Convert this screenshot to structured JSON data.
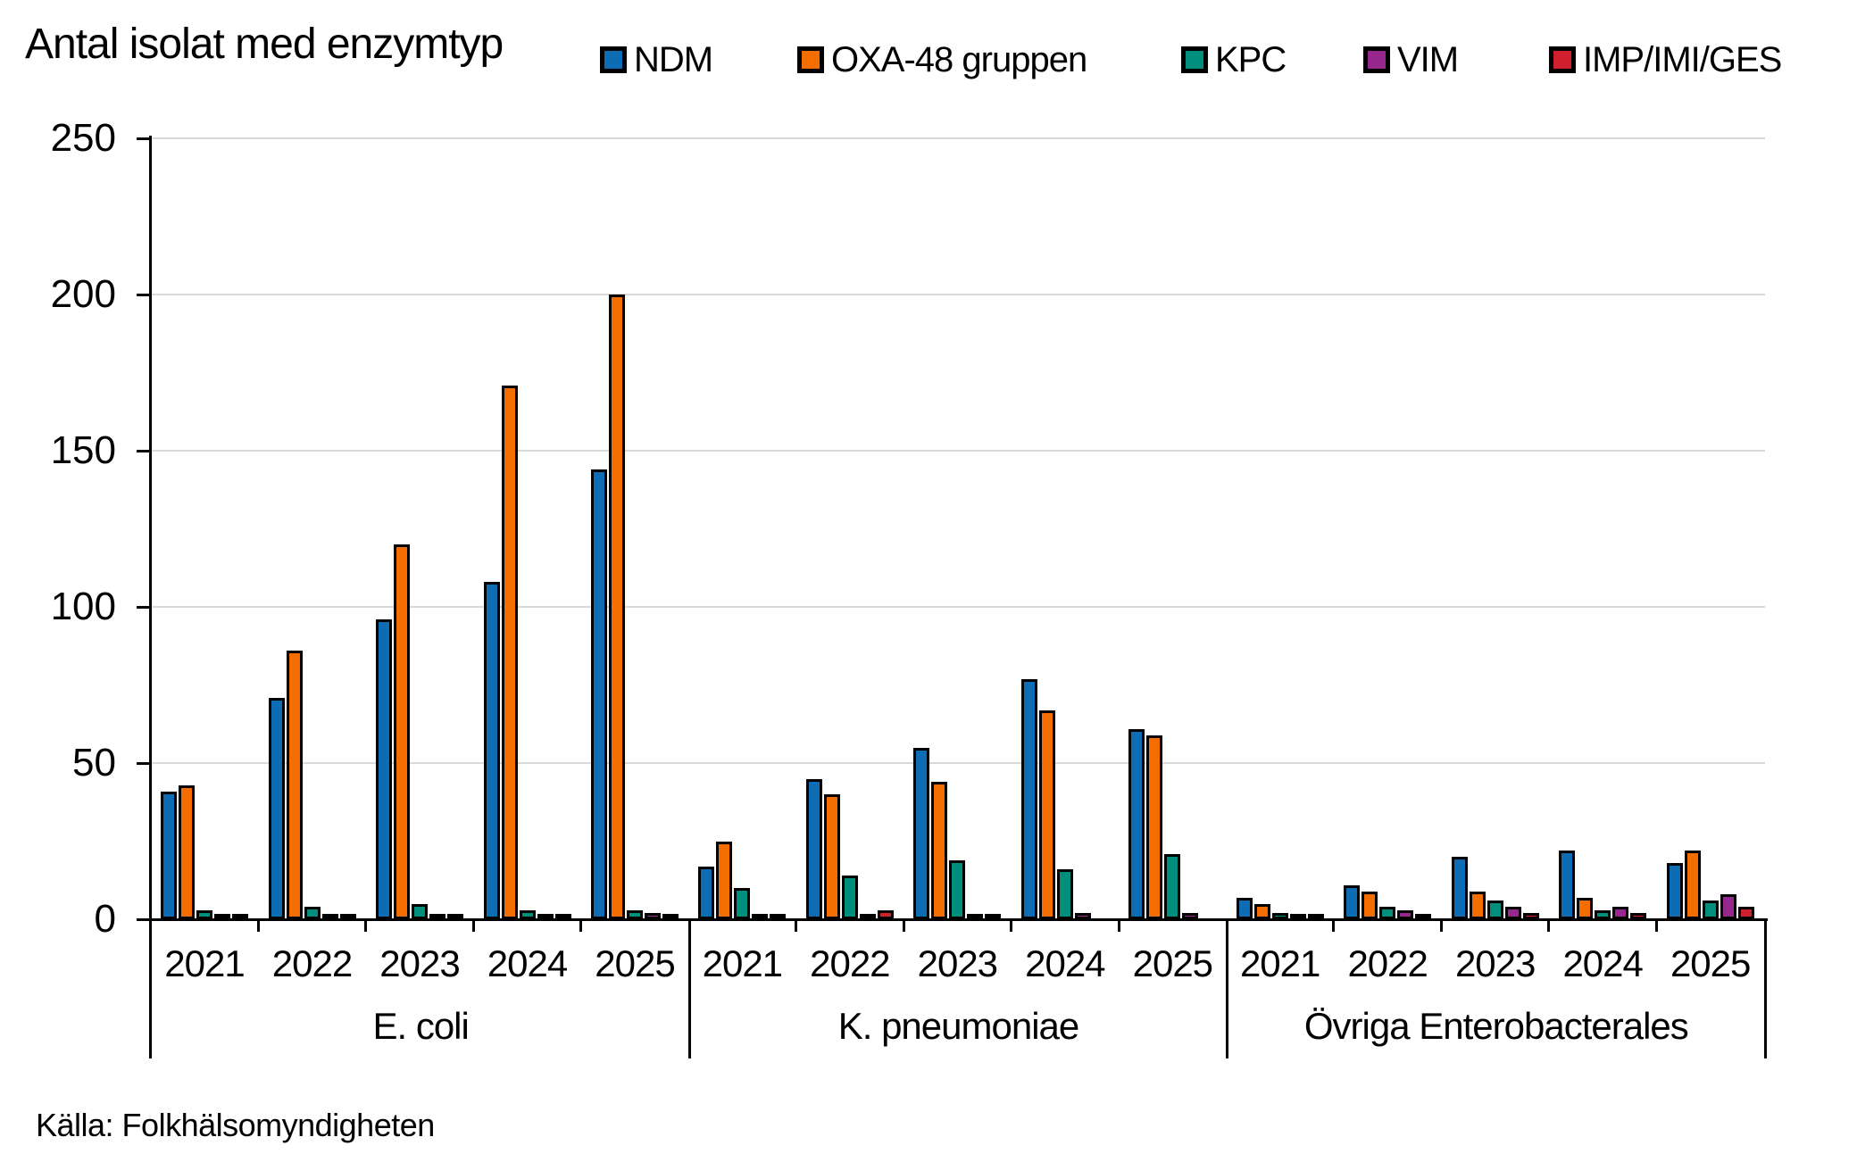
{
  "title": "Antal isolat med enzymtyp",
  "source": "Källa: Folkhälsomyndigheten",
  "legend": {
    "items": [
      {
        "label": "NDM",
        "color": "#0e6cb4"
      },
      {
        "label": "OXA-48 gruppen",
        "color": "#f36d00"
      },
      {
        "label": "KPC",
        "color": "#008f7d"
      },
      {
        "label": "VIM",
        "color": "#97278d"
      },
      {
        "label": "IMP/IMI/GES",
        "color": "#d01f2f"
      }
    ]
  },
  "chart_data": {
    "type": "bar",
    "title": "Antal isolat med enzymtyp",
    "xlabel": "",
    "ylabel": "Antal isolat",
    "ylim": [
      0,
      250
    ],
    "y_ticks": [
      0,
      50,
      100,
      150,
      200,
      250
    ],
    "grid": "horizontal",
    "legend_position": "top",
    "years": [
      "2021",
      "2022",
      "2023",
      "2024",
      "2025"
    ],
    "series_names": [
      "NDM",
      "OXA-48 gruppen",
      "KPC",
      "VIM",
      "IMP/IMI/GES"
    ],
    "series_colors": [
      "#0e6cb4",
      "#f36d00",
      "#008f7d",
      "#97278d",
      "#d01f2f"
    ],
    "groups": [
      {
        "label": "E. coli",
        "series": [
          [
            41,
            71,
            96,
            108,
            144
          ],
          [
            43,
            86,
            120,
            171,
            200
          ],
          [
            3,
            4,
            5,
            3,
            3
          ],
          [
            1,
            1,
            1,
            1,
            2
          ],
          [
            1,
            1,
            1,
            1,
            1
          ]
        ]
      },
      {
        "label": "K. pneumoniae",
        "series": [
          [
            17,
            45,
            55,
            77,
            61
          ],
          [
            25,
            40,
            44,
            67,
            59
          ],
          [
            10,
            14,
            19,
            16,
            21
          ],
          [
            1,
            1,
            1,
            2,
            2
          ],
          [
            1,
            3,
            1,
            0,
            0
          ]
        ]
      },
      {
        "label": "Övriga Enterobacterales",
        "series": [
          [
            7,
            11,
            20,
            22,
            18
          ],
          [
            5,
            9,
            9,
            7,
            22
          ],
          [
            2,
            4,
            6,
            3,
            6
          ],
          [
            1,
            3,
            4,
            4,
            8
          ],
          [
            1,
            1,
            2,
            2,
            4
          ]
        ]
      }
    ]
  }
}
